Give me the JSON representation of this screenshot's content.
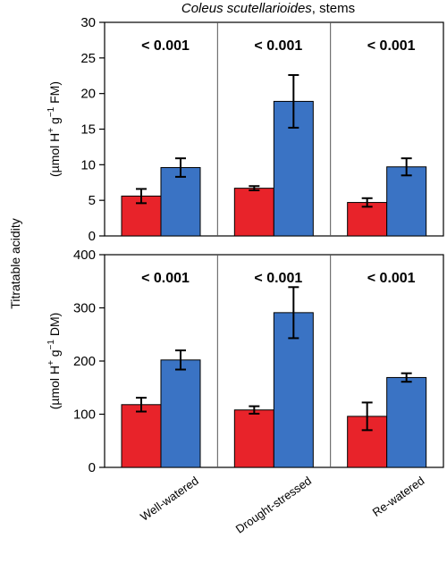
{
  "title": {
    "species": "Coleus scutellarioides",
    "suffix": ", stems"
  },
  "common_ylabel": "Titratable acidity",
  "colors": {
    "series_a": "#e8232a",
    "series_b": "#3a73c4"
  },
  "chart_data": [
    {
      "type": "bar",
      "panel": "top",
      "ylabel_parts": [
        "(µmol H",
        "+",
        " g",
        "−1",
        " FM)"
      ],
      "ylim": [
        0,
        30
      ],
      "yticks": [
        0,
        5,
        10,
        15,
        20,
        25,
        30
      ],
      "categories": [
        "Well-watered",
        "Drought-stressed",
        "Re-watered"
      ],
      "series": [
        {
          "values": [
            5.6,
            6.7,
            4.7
          ],
          "errors": [
            1.0,
            0.3,
            0.6
          ]
        },
        {
          "values": [
            9.6,
            18.9,
            9.7
          ],
          "errors": [
            1.3,
            3.7,
            1.2
          ]
        }
      ],
      "annotations": [
        "< 0.001",
        "< 0.001",
        "< 0.001"
      ]
    },
    {
      "type": "bar",
      "panel": "bottom",
      "ylabel_parts": [
        "(µmol H",
        "+",
        " g",
        "−1",
        " DM)"
      ],
      "ylim": [
        0,
        400
      ],
      "yticks": [
        0,
        100,
        200,
        300,
        400
      ],
      "categories": [
        "Well-watered",
        "Drought-stressed",
        "Re-watered"
      ],
      "series": [
        {
          "values": [
            118,
            108,
            96
          ],
          "errors": [
            13,
            7,
            26
          ]
        },
        {
          "values": [
            202,
            291,
            169
          ],
          "errors": [
            18,
            48,
            8
          ]
        }
      ],
      "annotations": [
        "< 0.001",
        "< 0.001",
        "< 0.001"
      ]
    }
  ]
}
